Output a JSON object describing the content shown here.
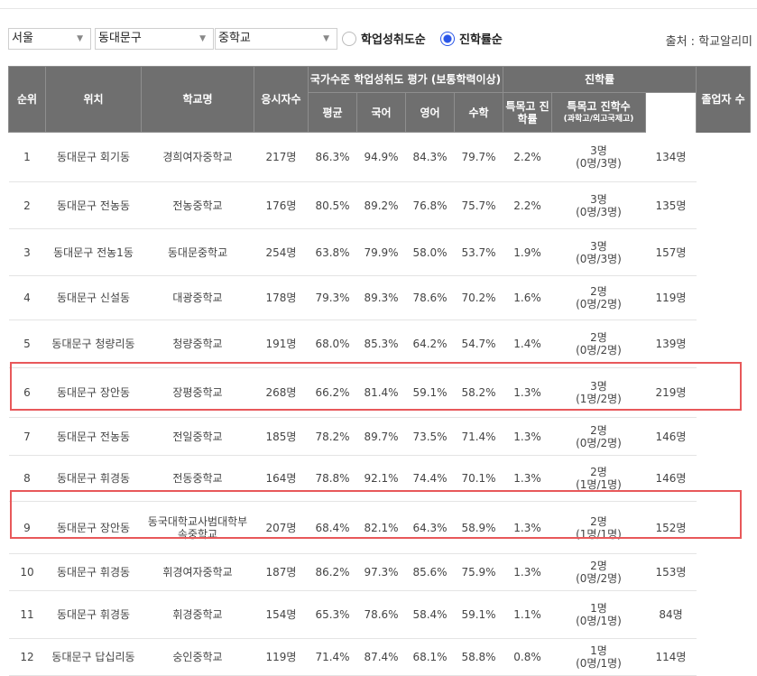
{
  "filters": {
    "region": "서울",
    "district": "동대문구",
    "school_level": "중학교",
    "sort_options": [
      {
        "label": "학업성취도순",
        "selected": false
      },
      {
        "label": "진학률순",
        "selected": true
      }
    ],
    "source": "출처 : 학교알리미"
  },
  "colors": {
    "header_bg": "#6f6f6f",
    "highlight": "#e8585a",
    "radio_on": "#2a56e8"
  },
  "table": {
    "headers": {
      "rank": "순위",
      "location": "위치",
      "school": "학교명",
      "examinees": "응시자수",
      "achievement_group": "국가수준 학업성취도 평가 (보통학력이상)",
      "avg": "평균",
      "korean": "국어",
      "english": "영어",
      "math": "수학",
      "progress_group": "진학률",
      "special_rate": "특목고 진학률",
      "special_count": "특목고 진학수",
      "special_count_sub": "(과학고/외고국제고)",
      "graduates": "졸업자 수"
    },
    "rows": [
      {
        "rank": "1",
        "loc": "동대문구 회기동",
        "school": "경희여자중학교",
        "exam": "217명",
        "avg": "86.3%",
        "kor": "94.9%",
        "eng": "84.3%",
        "math": "79.7%",
        "rate": "2.2%",
        "cnt": "3명",
        "cnt_sub": "(0명/3명)",
        "grad": "134명"
      },
      {
        "rank": "2",
        "loc": "동대문구 전농동",
        "school": "전농중학교",
        "exam": "176명",
        "avg": "80.5%",
        "kor": "89.2%",
        "eng": "76.8%",
        "math": "75.7%",
        "rate": "2.2%",
        "cnt": "3명",
        "cnt_sub": "(0명/3명)",
        "grad": "135명"
      },
      {
        "rank": "3",
        "loc": "동대문구 전농1동",
        "school": "동대문중학교",
        "exam": "254명",
        "avg": "63.8%",
        "kor": "79.9%",
        "eng": "58.0%",
        "math": "53.7%",
        "rate": "1.9%",
        "cnt": "3명",
        "cnt_sub": "(0명/3명)",
        "grad": "157명"
      },
      {
        "rank": "4",
        "loc": "동대문구 신설동",
        "school": "대광중학교",
        "exam": "178명",
        "avg": "79.3%",
        "kor": "89.3%",
        "eng": "78.6%",
        "math": "70.2%",
        "rate": "1.6%",
        "cnt": "2명",
        "cnt_sub": "(0명/2명)",
        "grad": "119명"
      },
      {
        "rank": "5",
        "loc": "동대문구 청량리동",
        "school": "청량중학교",
        "exam": "191명",
        "avg": "68.0%",
        "kor": "85.3%",
        "eng": "64.2%",
        "math": "54.7%",
        "rate": "1.4%",
        "cnt": "2명",
        "cnt_sub": "(0명/2명)",
        "grad": "139명"
      },
      {
        "rank": "6",
        "loc": "동대문구 장안동",
        "school": "장평중학교",
        "exam": "268명",
        "avg": "66.2%",
        "kor": "81.4%",
        "eng": "59.1%",
        "math": "58.2%",
        "rate": "1.3%",
        "cnt": "3명",
        "cnt_sub": "(1명/2명)",
        "grad": "219명"
      },
      {
        "rank": "7",
        "loc": "동대문구 전농동",
        "school": "전일중학교",
        "exam": "185명",
        "avg": "78.2%",
        "kor": "89.7%",
        "eng": "73.5%",
        "math": "71.4%",
        "rate": "1.3%",
        "cnt": "2명",
        "cnt_sub": "(0명/2명)",
        "grad": "146명"
      },
      {
        "rank": "8",
        "loc": "동대문구 휘경동",
        "school": "전동중학교",
        "exam": "164명",
        "avg": "78.8%",
        "kor": "92.1%",
        "eng": "74.4%",
        "math": "70.1%",
        "rate": "1.3%",
        "cnt": "2명",
        "cnt_sub": "(1명/1명)",
        "grad": "146명"
      },
      {
        "rank": "9",
        "loc": "동대문구 장안동",
        "school": "동국대학교사범대학부속중학교",
        "exam": "207명",
        "avg": "68.4%",
        "kor": "82.1%",
        "eng": "64.3%",
        "math": "58.9%",
        "rate": "1.3%",
        "cnt": "2명",
        "cnt_sub": "(1명/1명)",
        "grad": "152명"
      },
      {
        "rank": "10",
        "loc": "동대문구 휘경동",
        "school": "휘경여자중학교",
        "exam": "187명",
        "avg": "86.2%",
        "kor": "97.3%",
        "eng": "85.6%",
        "math": "75.9%",
        "rate": "1.3%",
        "cnt": "2명",
        "cnt_sub": "(0명/2명)",
        "grad": "153명"
      },
      {
        "rank": "11",
        "loc": "동대문구 휘경동",
        "school": "휘경중학교",
        "exam": "154명",
        "avg": "65.3%",
        "kor": "78.6%",
        "eng": "58.4%",
        "math": "59.1%",
        "rate": "1.1%",
        "cnt": "1명",
        "cnt_sub": "(0명/1명)",
        "grad": "84명"
      },
      {
        "rank": "12",
        "loc": "동대문구 답십리동",
        "school": "숭인중학교",
        "exam": "119명",
        "avg": "71.4%",
        "kor": "87.4%",
        "eng": "68.1%",
        "math": "58.8%",
        "rate": "0.8%",
        "cnt": "1명",
        "cnt_sub": "(0명/1명)",
        "grad": "114명"
      }
    ]
  }
}
